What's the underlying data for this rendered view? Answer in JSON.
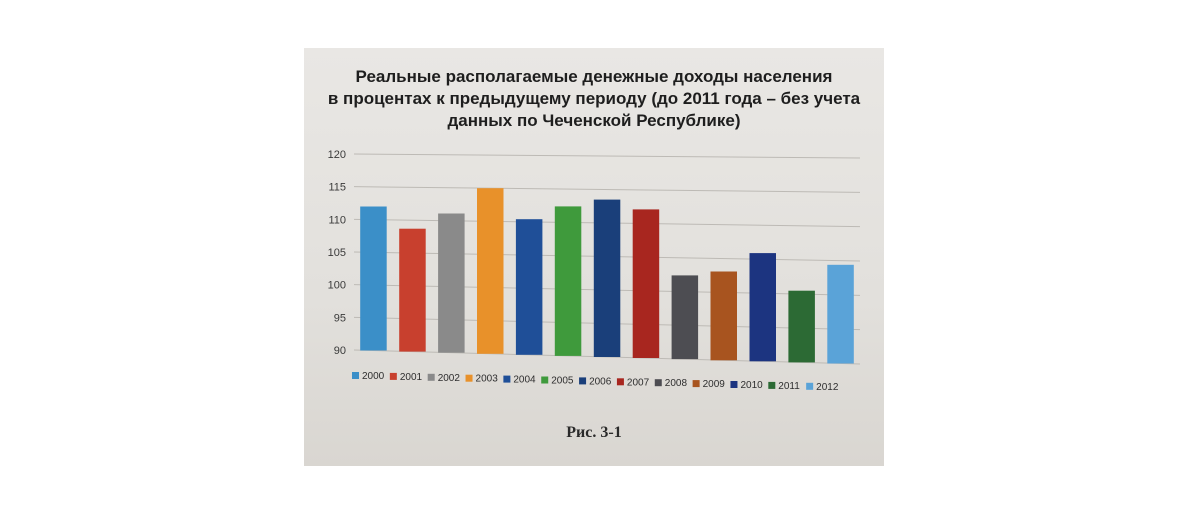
{
  "chart_data": {
    "type": "bar",
    "title_lines": [
      "Реальные располагаемые денежные доходы населения",
      "в процентах к предыдущему периоду (до 2011 года – без учета",
      "данных по Чеченской Республике)"
    ],
    "categories": [
      "2000",
      "2001",
      "2002",
      "2003",
      "2004",
      "2005",
      "2006",
      "2007",
      "2008",
      "2009",
      "2010",
      "2011",
      "2012"
    ],
    "values": [
      112.0,
      108.7,
      111.1,
      115.0,
      110.4,
      112.4,
      113.5,
      112.1,
      102.4,
      103.1,
      105.9,
      100.5,
      104.4
    ],
    "colors": [
      "#3b8fc8",
      "#c8402e",
      "#8a8a8a",
      "#e8912a",
      "#1f4f98",
      "#3f9a3c",
      "#1a3f7a",
      "#a8261f",
      "#4d4d52",
      "#a8541f",
      "#1c3480",
      "#2c6a34",
      "#5aa3d8"
    ],
    "ylim": [
      90,
      120
    ],
    "yticks": [
      "120",
      "115",
      "110",
      "105",
      "100",
      "95",
      "90"
    ],
    "legend_position": "bottom",
    "grid": true,
    "xlabel": "",
    "ylabel": ""
  },
  "caption": "Рис. 3-1"
}
